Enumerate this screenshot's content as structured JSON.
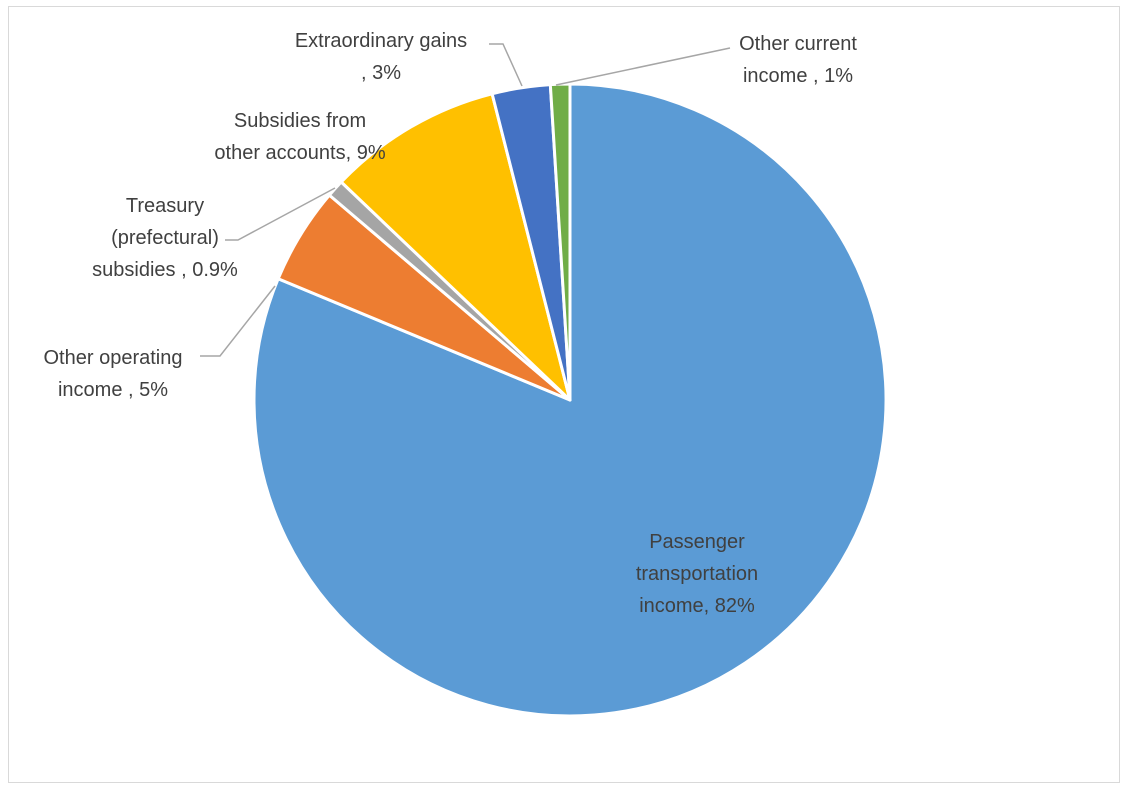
{
  "chart_data": {
    "type": "pie",
    "title": "",
    "start_angle_deg": 0,
    "direction": "clockwise",
    "slices": [
      {
        "category": "Passenger transportation income",
        "value": 82,
        "label_lines": [
          "Passenger",
          "transportation",
          "income, 82%"
        ],
        "color": "#5b9bd5"
      },
      {
        "category": "Other operating income",
        "value": 5,
        "label_lines": [
          "Other operating",
          "income , 5%"
        ],
        "color": "#ed7d31"
      },
      {
        "category": "Treasury (prefectural) subsidies",
        "value": 0.9,
        "label_lines": [
          "Treasury",
          "(prefectural)",
          "subsidies , 0.9%"
        ],
        "color": "#a5a5a5"
      },
      {
        "category": "Subsidies from other accounts",
        "value": 9,
        "label_lines": [
          "Subsidies from",
          "other accounts, 9%"
        ],
        "color": "#ffc000"
      },
      {
        "category": "Extraordinary gains",
        "value": 3,
        "label_lines": [
          "Extraordinary gains",
          ", 3%"
        ],
        "color": "#4472c4"
      },
      {
        "category": "Other current income",
        "value": 1,
        "label_lines": [
          "Other current",
          "income , 1%"
        ],
        "color": "#70ad47"
      }
    ]
  }
}
